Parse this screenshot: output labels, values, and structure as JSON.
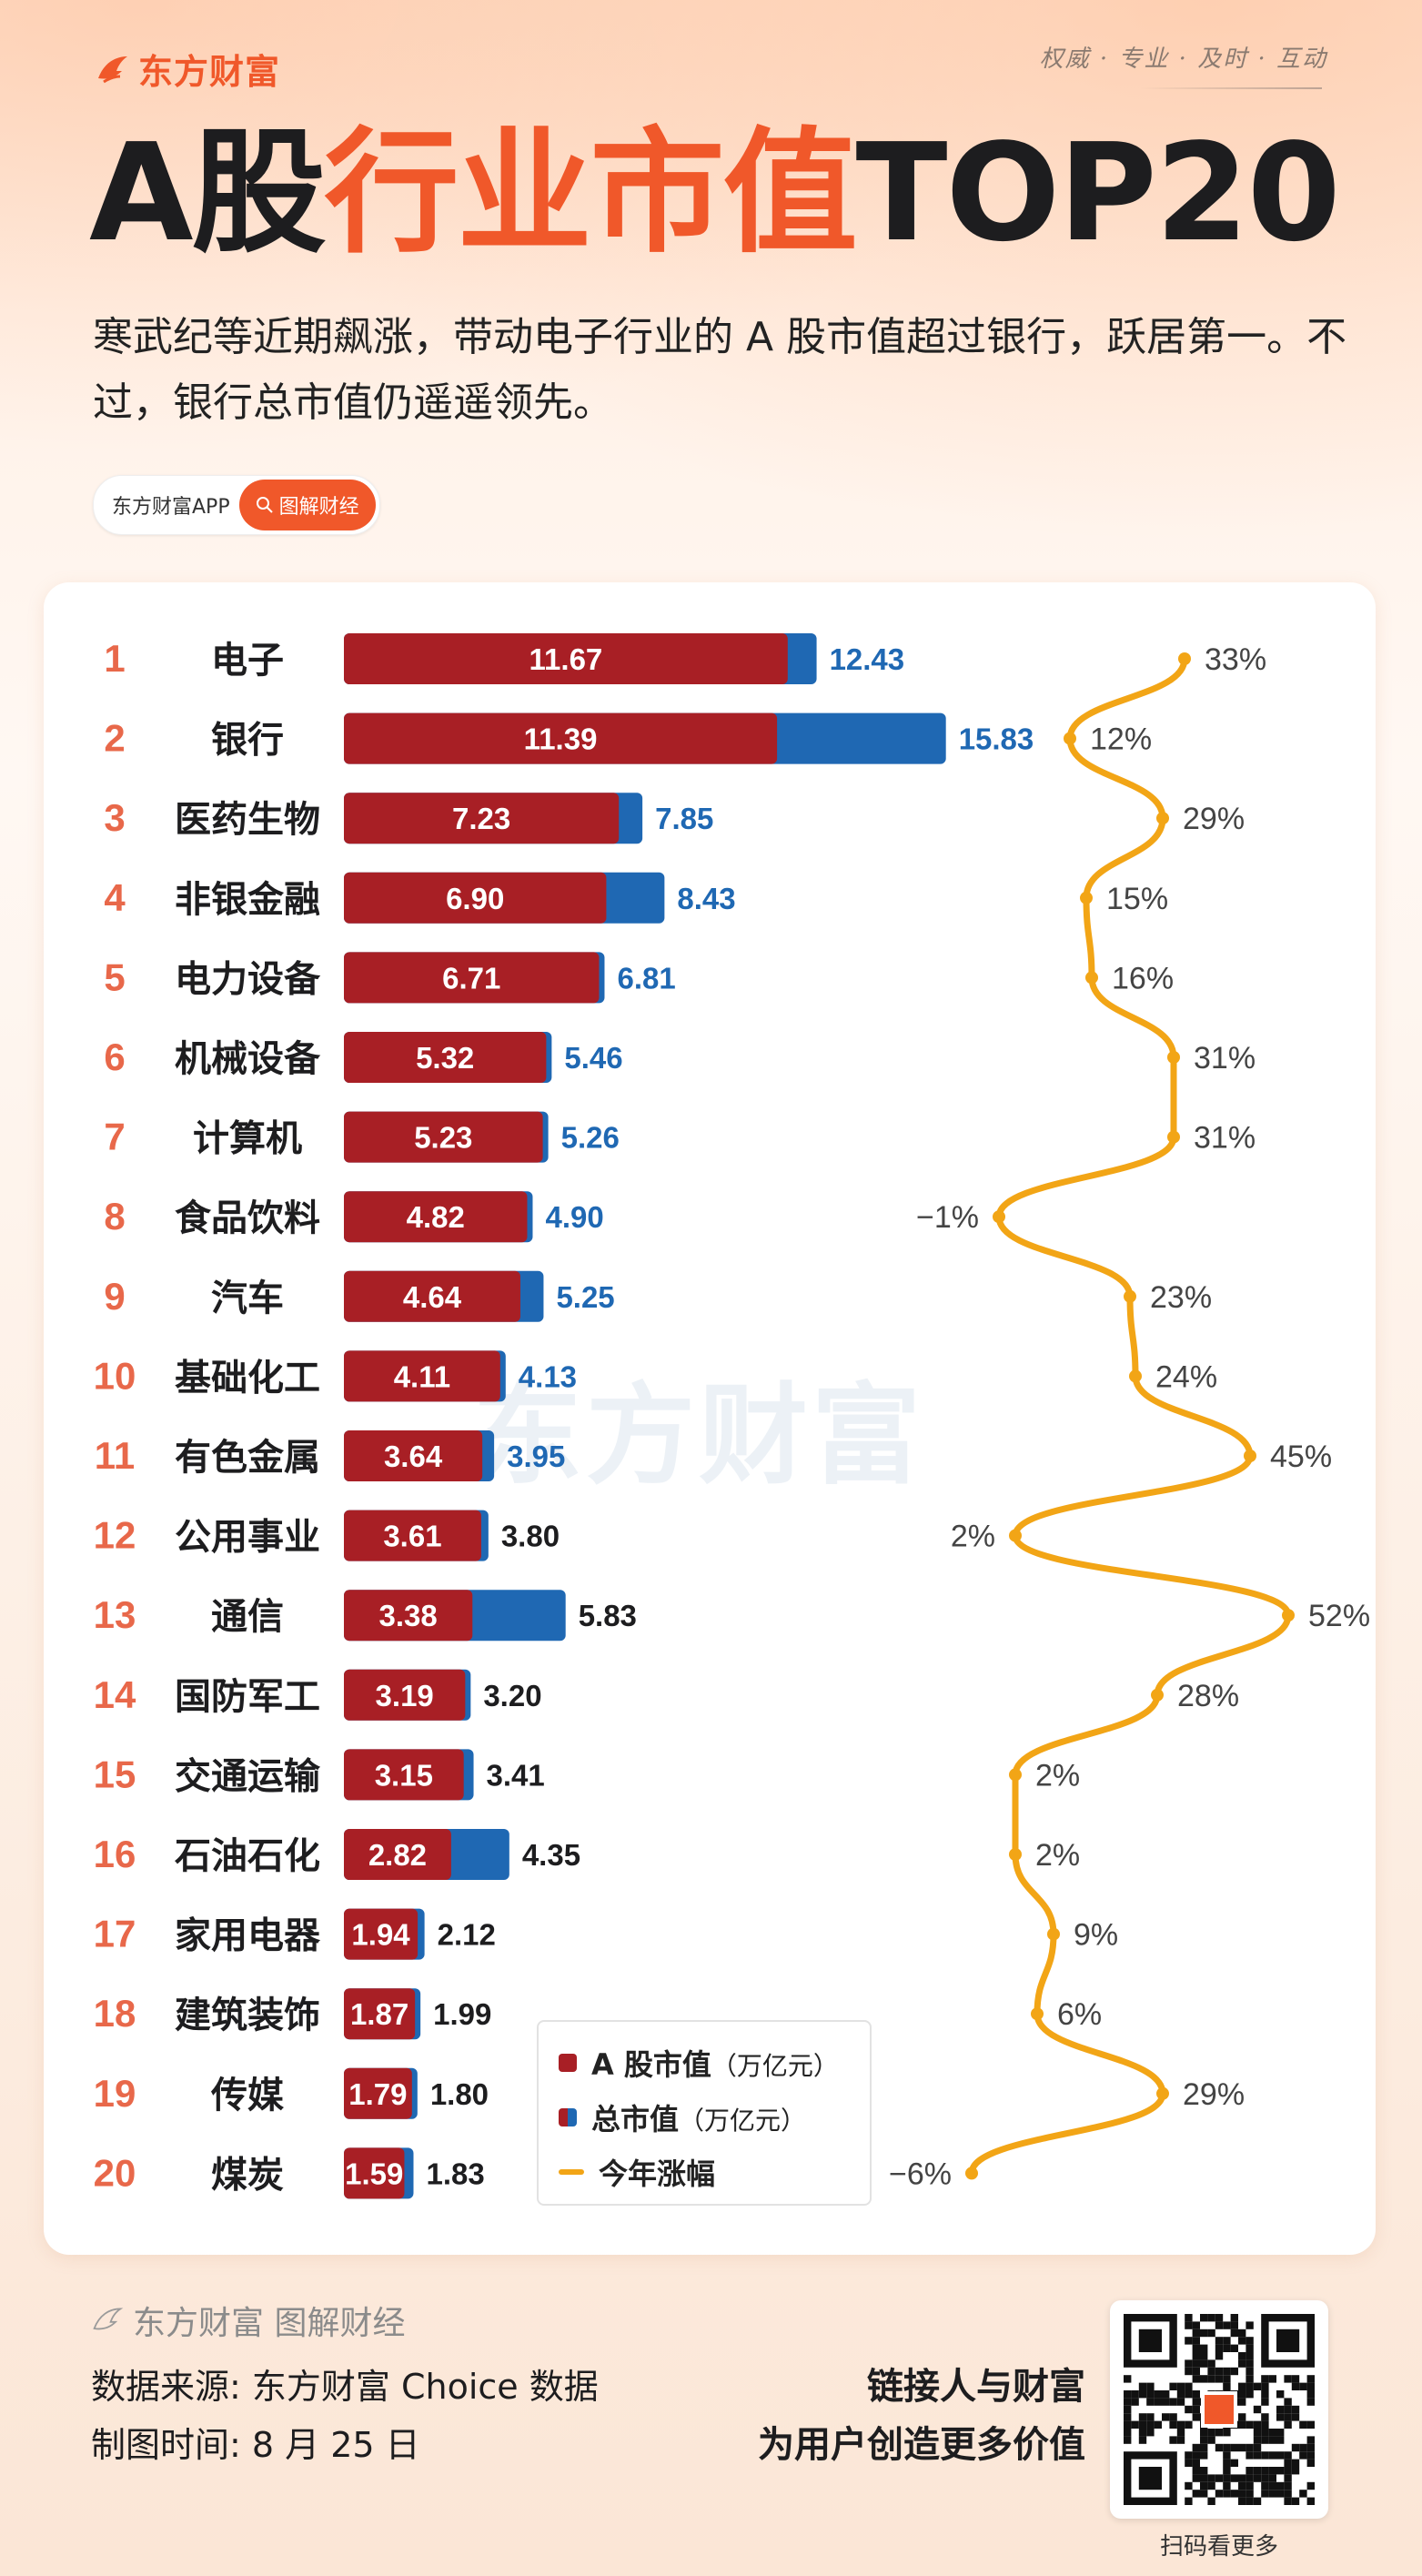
{
  "brand": {
    "name": "东方财富"
  },
  "slogan": "权威 · 专业 · 及时 · 互动",
  "title": {
    "part1": "A股",
    "part2": "行业市值",
    "part3": "TOP20"
  },
  "subtitle": "寒武纪等近期飙涨，带动电子行业的 A 股市值超过银行，跃居第一。不过，银行总市值仍遥遥领先。",
  "pill": {
    "left": "东方财富APP",
    "right": "图解财经"
  },
  "watermark": "东方财富",
  "colors": {
    "a_share": "#a81f25",
    "total": "#1f68b3",
    "line": "#f2a516",
    "rank": "#e8684a",
    "accent": "#f0582a"
  },
  "legend": {
    "a_share": "A 股市值",
    "a_share_unit": "（万亿元）",
    "total": "总市值",
    "total_unit": "（万亿元）",
    "line": "今年涨幅"
  },
  "chart_data": {
    "type": "bar",
    "title": "A股行业市值TOP20",
    "categories": [
      "电子",
      "银行",
      "医药生物",
      "非银金融",
      "电力设备",
      "机械设备",
      "计算机",
      "食品饮料",
      "汽车",
      "基础化工",
      "有色金属",
      "公用事业",
      "通信",
      "国防军工",
      "交通运输",
      "石油石化",
      "家用电器",
      "建筑装饰",
      "传媒",
      "煤炭"
    ],
    "ranks": [
      "1",
      "2",
      "3",
      "4",
      "5",
      "6",
      "7",
      "8",
      "9",
      "10",
      "11",
      "12",
      "13",
      "14",
      "15",
      "16",
      "17",
      "18",
      "19",
      "20"
    ],
    "series": [
      {
        "name": "A 股市值（万亿元）",
        "type": "bar",
        "values": [
          11.67,
          11.39,
          7.23,
          6.9,
          6.71,
          5.32,
          5.23,
          4.82,
          4.64,
          4.11,
          3.64,
          3.61,
          3.38,
          3.19,
          3.15,
          2.82,
          1.94,
          1.87,
          1.79,
          1.59
        ],
        "labels": [
          "11.67",
          "11.39",
          "7.23",
          "6.90",
          "6.71",
          "5.32",
          "5.23",
          "4.82",
          "4.64",
          "4.11",
          "3.64",
          "3.61",
          "3.38",
          "3.19",
          "3.15",
          "2.82",
          "1.94",
          "1.87",
          "1.79",
          "1.59"
        ]
      },
      {
        "name": "总市值（万亿元）",
        "type": "bar",
        "values": [
          12.43,
          15.83,
          7.85,
          8.43,
          6.81,
          5.46,
          5.26,
          4.9,
          5.25,
          4.13,
          3.95,
          3.8,
          5.83,
          3.2,
          3.41,
          4.35,
          2.12,
          1.99,
          1.8,
          1.83
        ],
        "labels": [
          "12.43",
          "15.83",
          "7.85",
          "8.43",
          "6.81",
          "5.46",
          "5.26",
          "4.90",
          "5.25",
          "4.13",
          "3.95",
          "3.80",
          "5.83",
          "3.20",
          "3.41",
          "4.35",
          "2.12",
          "1.99",
          "1.80",
          "1.83"
        ]
      },
      {
        "name": "今年涨幅",
        "type": "line",
        "unit": "%",
        "values": [
          33,
          12,
          29,
          15,
          16,
          31,
          31,
          -1,
          23,
          24,
          45,
          2,
          52,
          28,
          2,
          2,
          9,
          6,
          29,
          -6
        ],
        "labels": [
          "33%",
          "12%",
          "29%",
          "15%",
          "16%",
          "31%",
          "31%",
          "−1%",
          "23%",
          "24%",
          "45%",
          "2%",
          "52%",
          "28%",
          "2%",
          "2%",
          "9%",
          "6%",
          "29%",
          "−6%"
        ]
      }
    ],
    "legend_position": "bottom-center",
    "grid": false
  },
  "footer": {
    "brand": "东方财富 图解财经",
    "source": "数据来源: 东方财富 Choice 数据",
    "time": "制图时间: 8 月 25 日",
    "tagline1": "链接人与财富",
    "tagline2": "为用户创造更多价值",
    "qr_caption": "扫码看更多"
  }
}
